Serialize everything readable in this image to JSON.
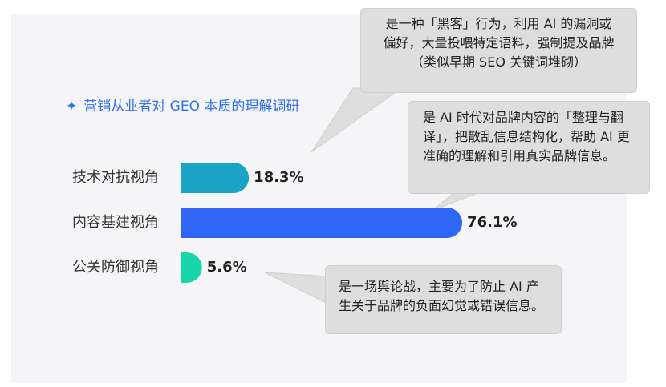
{
  "title": {
    "icon": "sparkle-icon",
    "text": "营销从业者对 GEO 本质的理解调研"
  },
  "chart_data": {
    "type": "bar",
    "orientation": "horizontal",
    "title": "营销从业者对 GEO 本质的理解调研",
    "categories": [
      "技术对抗视角",
      "内容基建视角",
      "公关防御视角"
    ],
    "values": [
      18.3,
      76.1,
      5.6
    ],
    "value_labels": [
      "18.3%",
      "76.1%",
      "5.6%"
    ],
    "unit": "%",
    "xlim": [
      0,
      100
    ],
    "colors": [
      "#18a3c7",
      "#2f66f5",
      "#19d6a8"
    ],
    "grid": false,
    "legend": "none",
    "annotations": [
      {
        "category": "技术对抗视角",
        "lines": [
          "是一种「黑客」行为，利用 AI 的漏洞或",
          "偏好，大量投喂特定语料，强制提及品牌",
          "（类似早期 SEO 关键词堆砌）"
        ]
      },
      {
        "category": "内容基建视角",
        "lines": [
          "是 AI 时代对品牌内容的「整理与翻",
          "译」，把散乱信息结构化，帮助 AI 更",
          "准确的理解和引用真实品牌信息。"
        ]
      },
      {
        "category": "公关防御视角",
        "lines": [
          "是一场舆论战，主要为了防止 AI 产",
          "生关于品牌的负面幻觉或错误信息。"
        ]
      }
    ]
  },
  "colors": {
    "panel": "#f5f5f7",
    "title": "#2f6ff0",
    "callout": "#dedede"
  }
}
